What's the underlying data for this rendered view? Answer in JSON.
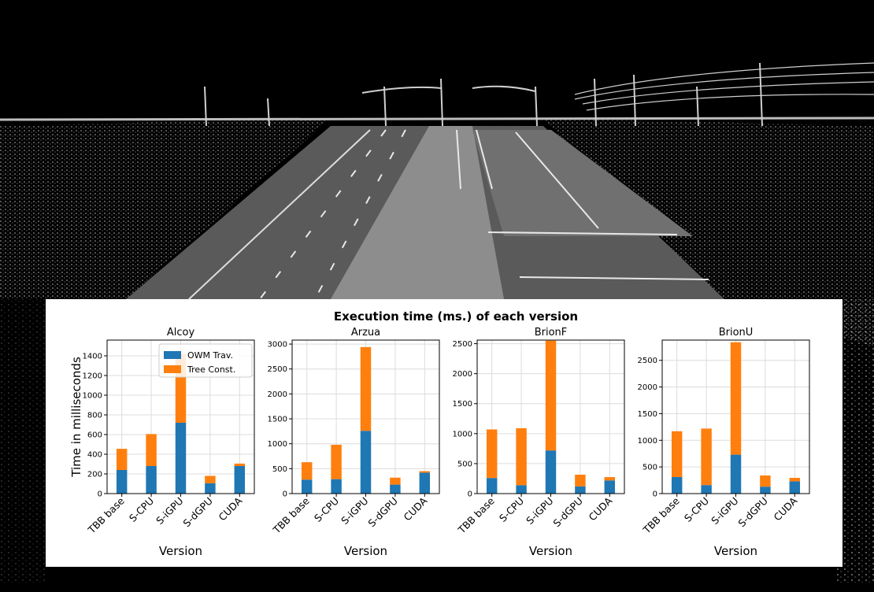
{
  "figure_title": "Execution time (ms.) of each version",
  "colors": {
    "owm": "#1f77b4",
    "tree": "#ff7f0e",
    "grid": "#dcdcdc"
  },
  "chart_data": [
    {
      "type": "bar",
      "stacked": true,
      "title": "Alcoy",
      "ylabel": "Time in milliseconds",
      "xlabel": "Version",
      "ylim": [
        0,
        1560
      ],
      "yticks": [
        0,
        200,
        400,
        600,
        800,
        1000,
        1200,
        1400
      ],
      "legend": "top-right",
      "categories": [
        "TBB base",
        "S-CPU",
        "S-iGPU",
        "S-dGPU",
        "CUDA"
      ],
      "series": [
        {
          "name": "OWM Trav.",
          "values": [
            240,
            280,
            720,
            105,
            280
          ]
        },
        {
          "name": "Tree Const.",
          "values": [
            215,
            325,
            700,
            75,
            25
          ]
        }
      ]
    },
    {
      "type": "bar",
      "stacked": true,
      "title": "Arzua",
      "xlabel": "Version",
      "ylim": [
        0,
        3080
      ],
      "yticks": [
        0,
        500,
        1000,
        1500,
        2000,
        2500,
        3000
      ],
      "categories": [
        "TBB base",
        "S-CPU",
        "S-iGPU",
        "S-dGPU",
        "CUDA"
      ],
      "series": [
        {
          "values": [
            280,
            290,
            1260,
            180,
            420
          ]
        },
        {
          "values": [
            350,
            690,
            1680,
            140,
            30
          ]
        }
      ]
    },
    {
      "type": "bar",
      "stacked": true,
      "title": "BrionF",
      "xlabel": "Version",
      "ylim": [
        0,
        2560
      ],
      "yticks": [
        0,
        500,
        1000,
        1500,
        2000,
        2500
      ],
      "categories": [
        "TBB base",
        "S-CPU",
        "S-iGPU",
        "S-dGPU",
        "CUDA"
      ],
      "series": [
        {
          "values": [
            260,
            140,
            720,
            120,
            220
          ]
        },
        {
          "values": [
            810,
            950,
            1830,
            195,
            55
          ]
        }
      ]
    },
    {
      "type": "bar",
      "stacked": true,
      "title": "BrionU",
      "xlabel": "Version",
      "ylim": [
        0,
        2880
      ],
      "yticks": [
        0,
        500,
        1000,
        1500,
        2000,
        2500
      ],
      "categories": [
        "TBB base",
        "S-CPU",
        "S-iGPU",
        "S-dGPU",
        "CUDA"
      ],
      "series": [
        {
          "values": [
            310,
            160,
            730,
            130,
            230
          ]
        },
        {
          "values": [
            860,
            1060,
            2110,
            210,
            65
          ]
        }
      ]
    }
  ]
}
